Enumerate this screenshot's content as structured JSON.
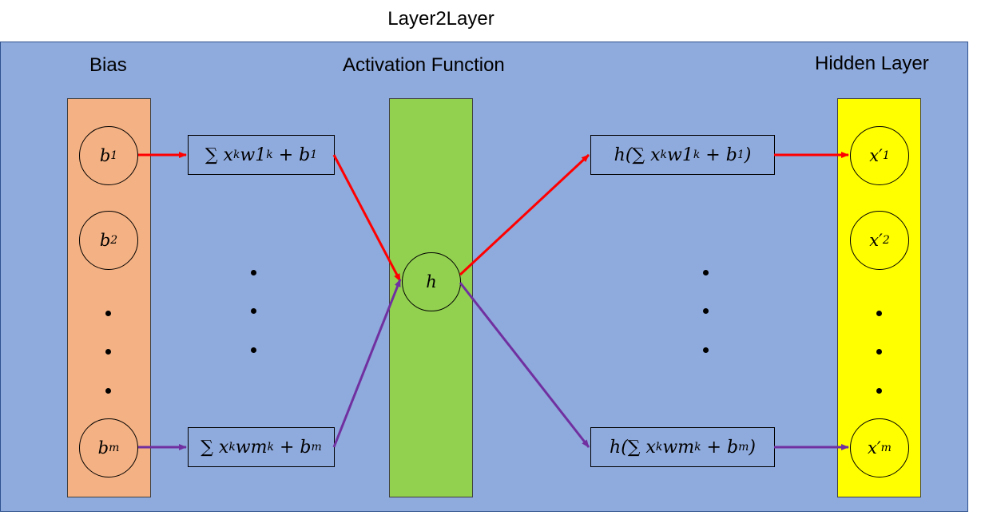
{
  "title": "Layer2Layer",
  "sections": {
    "bias": "Bias",
    "activation": "Activation Function",
    "hidden": "Hidden Layer"
  },
  "bias_nodes": [
    {
      "base": "b",
      "sub": "1"
    },
    {
      "base": "b",
      "sub": "2"
    },
    {
      "base": "b",
      "sub": "m"
    }
  ],
  "sum_boxes": [
    {
      "text": "∑ x",
      "sub1": "k",
      "mid": "w1",
      "sub2": "k",
      "tail": " + b",
      "sub3": "1"
    },
    {
      "text": "∑ x",
      "sub1": "k",
      "mid": "wm",
      "sub2": "k",
      "tail": " + b",
      "sub3": "m"
    }
  ],
  "activation_node": "h",
  "output_boxes": [
    {
      "text": "h(∑ x",
      "sub1": "k",
      "mid": "w1",
      "sub2": "k",
      "tail": " + b",
      "sub3": "1",
      "close": ")"
    },
    {
      "text": "h(∑ x",
      "sub1": "k",
      "mid": "wm",
      "sub2": "k",
      "tail": " + b",
      "sub3": "m",
      "close": ")"
    }
  ],
  "hidden_nodes": [
    {
      "base": "x′",
      "sub": "1"
    },
    {
      "base": "x′",
      "sub": "2"
    },
    {
      "base": "x′",
      "sub": "m"
    }
  ],
  "colors": {
    "panel": "#8faadc",
    "bias_column": "#f4b183",
    "activation_column": "#92d050",
    "hidden_column": "#ffff00",
    "arrow_top": "#ff0000",
    "arrow_bottom": "#7030a0"
  }
}
